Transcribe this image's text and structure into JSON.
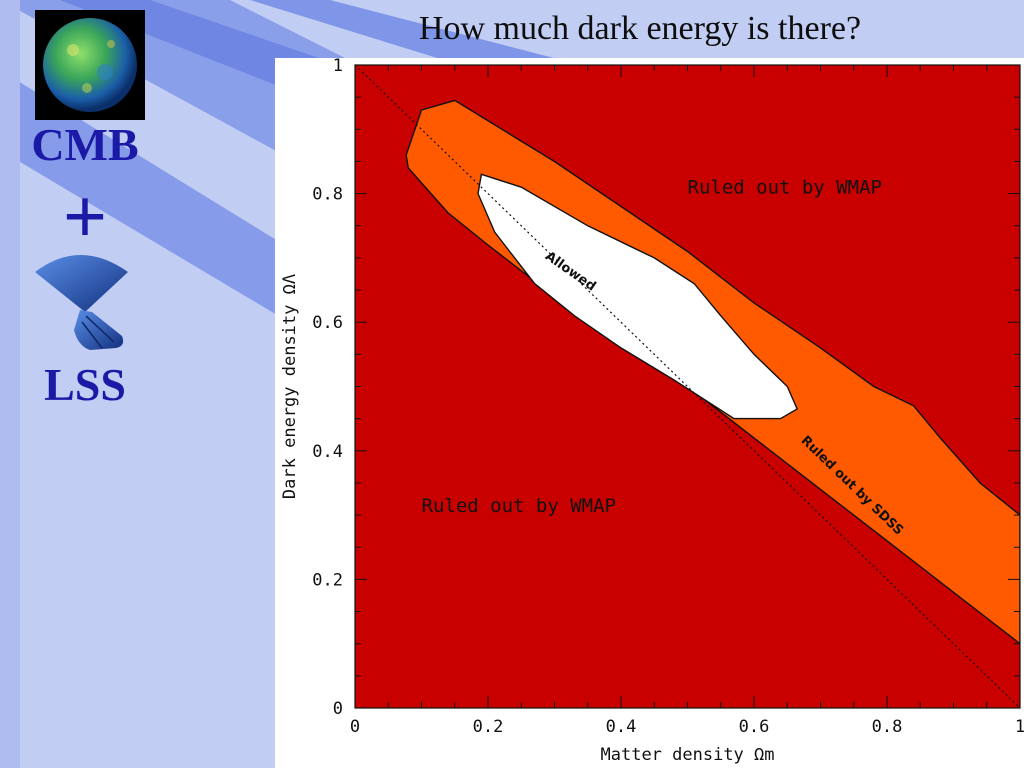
{
  "slide": {
    "title": "How much dark energy is there?",
    "cmb_label": "CMB",
    "plus_label": "+",
    "lss_label": "LSS"
  },
  "icons": {
    "globe": "cmb-sky-map-icon",
    "lss": "survey-cone-icon"
  },
  "colors": {
    "wmap_excluded": "#c80000",
    "sdss_excluded": "#ff5a00",
    "allowed": "#ffffff",
    "title_text": "#1a1aa6"
  },
  "chart_data": {
    "type": "area",
    "xlabel": "Matter density Ωm",
    "ylabel": "Dark energy density ΩΛ",
    "xlim": [
      0,
      1
    ],
    "ylim": [
      0,
      1
    ],
    "xticks": [
      "0",
      "0.2",
      "0.4",
      "0.6",
      "0.8",
      "1"
    ],
    "yticks": [
      "0",
      "0.2",
      "0.4",
      "0.6",
      "0.8",
      "1"
    ],
    "regions": [
      {
        "name": "Ruled out by WMAP",
        "role": "background",
        "points": []
      },
      {
        "name": "Ruled out by SDSS",
        "role": "wmap_band",
        "points": [
          [
            0.1,
            0.93
          ],
          [
            0.15,
            0.945
          ],
          [
            0.3,
            0.85
          ],
          [
            0.5,
            0.71
          ],
          [
            0.6,
            0.63
          ],
          [
            0.7,
            0.56
          ],
          [
            0.78,
            0.5
          ],
          [
            0.84,
            0.47
          ],
          [
            0.88,
            0.42
          ],
          [
            0.94,
            0.35
          ],
          [
            1.0,
            0.3
          ],
          [
            1.0,
            0.1
          ],
          [
            0.95,
            0.14
          ],
          [
            0.9,
            0.18
          ],
          [
            0.85,
            0.22
          ],
          [
            0.8,
            0.26
          ],
          [
            0.7,
            0.34
          ],
          [
            0.6,
            0.42
          ],
          [
            0.5,
            0.5
          ],
          [
            0.4,
            0.57
          ],
          [
            0.3,
            0.64
          ],
          [
            0.2,
            0.72
          ],
          [
            0.14,
            0.77
          ],
          [
            0.08,
            0.84
          ],
          [
            0.077,
            0.86
          ]
        ]
      },
      {
        "name": "Allowed",
        "role": "allowed",
        "points": [
          [
            0.19,
            0.83
          ],
          [
            0.25,
            0.81
          ],
          [
            0.35,
            0.75
          ],
          [
            0.45,
            0.7
          ],
          [
            0.51,
            0.66
          ],
          [
            0.55,
            0.61
          ],
          [
            0.6,
            0.55
          ],
          [
            0.65,
            0.5
          ],
          [
            0.665,
            0.465
          ],
          [
            0.64,
            0.45
          ],
          [
            0.57,
            0.45
          ],
          [
            0.48,
            0.51
          ],
          [
            0.4,
            0.56
          ],
          [
            0.33,
            0.61
          ],
          [
            0.27,
            0.66
          ],
          [
            0.21,
            0.74
          ],
          [
            0.185,
            0.8
          ]
        ]
      }
    ],
    "flat_universe_line": [
      [
        0,
        1
      ],
      [
        1,
        0
      ]
    ],
    "annotations": [
      {
        "text": "Ruled out by WMAP",
        "x": 0.5,
        "y": 0.8
      },
      {
        "text": "Ruled out by WMAP",
        "x": 0.1,
        "y": 0.305
      },
      {
        "text": "Allowed",
        "x": 0.285,
        "y": 0.7,
        "angle": 35
      },
      {
        "text": "Ruled out by SDSS",
        "x": 0.67,
        "y": 0.415,
        "angle": 44
      }
    ]
  }
}
